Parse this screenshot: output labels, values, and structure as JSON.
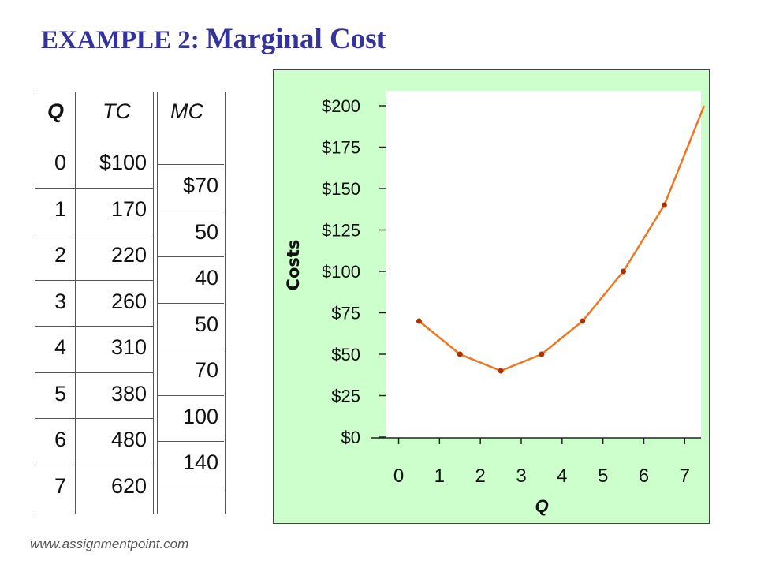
{
  "title": {
    "prefix": "EXAMPLE 2:",
    "main": "Marginal Cost"
  },
  "table": {
    "headers": {
      "q": "Q",
      "tc": "TC",
      "mc": "MC"
    },
    "q_values": [
      "0",
      "1",
      "2",
      "3",
      "4",
      "5",
      "6",
      "7"
    ],
    "tc_values": [
      "$100",
      "170",
      "220",
      "260",
      "310",
      "380",
      "480",
      "620"
    ],
    "mc_values": [
      "$70",
      "50",
      "40",
      "50",
      "70",
      "100",
      "140"
    ]
  },
  "chart_data": {
    "type": "line",
    "x": [
      0.5,
      1.5,
      2.5,
      3.5,
      4.5,
      5.5,
      6.5
    ],
    "series": [
      {
        "values": [
          70,
          50,
          40,
          50,
          70,
          100,
          140
        ]
      }
    ],
    "curve_extends_to": {
      "x": 7.5,
      "y": 200
    },
    "xlabel": "Q",
    "ylabel": "Costs",
    "xlim": [
      -0.3,
      7.4
    ],
    "ylim": [
      0,
      200
    ],
    "x_ticks": [
      "0",
      "1",
      "2",
      "3",
      "4",
      "5",
      "6",
      "7"
    ],
    "y_ticks": [
      "$0",
      "$25",
      "$50",
      "$75",
      "$100",
      "$125",
      "$150",
      "$175",
      "$200"
    ],
    "grid": false,
    "colors": {
      "background": "#ccffcc",
      "plot_area": "#ffffff",
      "line": "#ee7722",
      "marker": "#aa3300"
    }
  },
  "footer": "www.assignmentpoint.com"
}
